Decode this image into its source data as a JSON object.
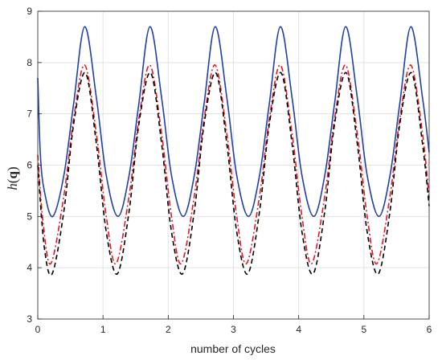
{
  "chart_data": {
    "type": "line",
    "title": "",
    "xlabel": "number of cycles",
    "ylabel": {
      "italic": "h",
      "paren_open": "(",
      "bold": "q",
      "paren_close": ")"
    },
    "xlim": [
      0,
      6
    ],
    "ylim": [
      3,
      9
    ],
    "xticks": [
      0,
      1,
      2,
      3,
      4,
      5,
      6
    ],
    "yticks": [
      3,
      4,
      5,
      6,
      7,
      8,
      9
    ],
    "grid": true,
    "legend": "none",
    "series": [
      {
        "color": "#1f3fa6",
        "style": "solid",
        "points": [
          [
            0,
            7.7
          ],
          [
            0.04,
            6.2
          ],
          [
            0.1,
            5.5
          ],
          [
            0.23,
            5.0
          ],
          [
            0.4,
            5.8
          ],
          [
            0.55,
            7.2
          ],
          [
            0.72,
            8.7
          ],
          [
            0.9,
            7.3
          ],
          [
            1.05,
            5.8
          ],
          [
            1.23,
            5.0
          ],
          [
            1.4,
            5.8
          ],
          [
            1.55,
            7.2
          ],
          [
            1.72,
            8.7
          ],
          [
            1.9,
            7.3
          ],
          [
            2.05,
            5.8
          ],
          [
            2.23,
            5.0
          ],
          [
            2.4,
            5.8
          ],
          [
            2.55,
            7.2
          ],
          [
            2.72,
            8.7
          ],
          [
            2.9,
            7.3
          ],
          [
            3.05,
            5.8
          ],
          [
            3.23,
            5.0
          ],
          [
            3.4,
            5.8
          ],
          [
            3.55,
            7.2
          ],
          [
            3.72,
            8.7
          ],
          [
            3.9,
            7.3
          ],
          [
            4.05,
            5.8
          ],
          [
            4.23,
            5.0
          ],
          [
            4.4,
            5.8
          ],
          [
            4.55,
            7.2
          ],
          [
            4.72,
            8.7
          ],
          [
            4.9,
            7.3
          ],
          [
            5.05,
            5.8
          ],
          [
            5.23,
            5.0
          ],
          [
            5.4,
            5.8
          ],
          [
            5.55,
            7.2
          ],
          [
            5.72,
            8.7
          ],
          [
            5.9,
            7.3
          ],
          [
            6.0,
            6.25
          ]
        ]
      },
      {
        "color": "#e8141e",
        "style": "dashdot",
        "points": [
          [
            0,
            6.2
          ],
          [
            0.08,
            4.9
          ],
          [
            0.2,
            4.08
          ],
          [
            0.4,
            5.4
          ],
          [
            0.55,
            6.9
          ],
          [
            0.72,
            7.95
          ],
          [
            0.9,
            6.6
          ],
          [
            1.05,
            5.0
          ],
          [
            1.2,
            4.08
          ],
          [
            1.4,
            5.4
          ],
          [
            1.55,
            6.9
          ],
          [
            1.72,
            7.95
          ],
          [
            1.9,
            6.6
          ],
          [
            2.05,
            5.0
          ],
          [
            2.2,
            4.08
          ],
          [
            2.4,
            5.4
          ],
          [
            2.55,
            6.9
          ],
          [
            2.72,
            7.95
          ],
          [
            2.9,
            6.6
          ],
          [
            3.05,
            5.0
          ],
          [
            3.2,
            4.08
          ],
          [
            3.4,
            5.4
          ],
          [
            3.55,
            6.9
          ],
          [
            3.72,
            7.95
          ],
          [
            3.9,
            6.6
          ],
          [
            4.05,
            5.0
          ],
          [
            4.2,
            4.08
          ],
          [
            4.4,
            5.4
          ],
          [
            4.55,
            6.9
          ],
          [
            4.72,
            7.95
          ],
          [
            4.9,
            6.6
          ],
          [
            5.05,
            5.0
          ],
          [
            5.2,
            4.08
          ],
          [
            5.4,
            5.4
          ],
          [
            5.55,
            6.9
          ],
          [
            5.72,
            7.95
          ],
          [
            5.9,
            6.6
          ],
          [
            6.0,
            5.35
          ]
        ]
      },
      {
        "color": "#000000",
        "style": "dashed",
        "points": [
          [
            0,
            6.0
          ],
          [
            0.1,
            4.4
          ],
          [
            0.22,
            3.88
          ],
          [
            0.4,
            5.1
          ],
          [
            0.55,
            6.8
          ],
          [
            0.73,
            7.8
          ],
          [
            0.9,
            6.4
          ],
          [
            1.05,
            4.7
          ],
          [
            1.22,
            3.88
          ],
          [
            1.4,
            5.1
          ],
          [
            1.55,
            6.8
          ],
          [
            1.73,
            7.8
          ],
          [
            1.9,
            6.4
          ],
          [
            2.05,
            4.7
          ],
          [
            2.22,
            3.88
          ],
          [
            2.4,
            5.1
          ],
          [
            2.55,
            6.8
          ],
          [
            2.73,
            7.8
          ],
          [
            2.9,
            6.4
          ],
          [
            3.05,
            4.7
          ],
          [
            3.22,
            3.88
          ],
          [
            3.4,
            5.1
          ],
          [
            3.55,
            6.8
          ],
          [
            3.73,
            7.8
          ],
          [
            3.9,
            6.4
          ],
          [
            4.05,
            4.7
          ],
          [
            4.22,
            3.88
          ],
          [
            4.4,
            5.1
          ],
          [
            4.55,
            6.8
          ],
          [
            4.73,
            7.8
          ],
          [
            4.9,
            6.4
          ],
          [
            5.05,
            4.7
          ],
          [
            5.22,
            3.88
          ],
          [
            5.4,
            5.1
          ],
          [
            5.55,
            6.8
          ],
          [
            5.73,
            7.8
          ],
          [
            5.9,
            6.4
          ],
          [
            6.0,
            5.2
          ]
        ]
      }
    ]
  }
}
